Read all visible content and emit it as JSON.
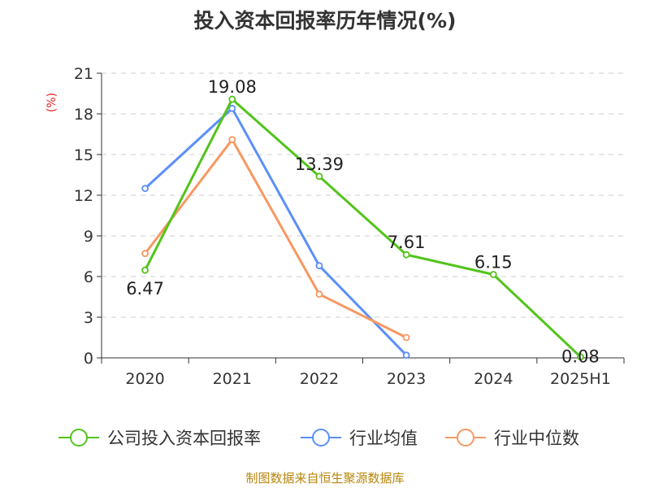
{
  "title": "投入资本回报率历年情况(%)",
  "source": "制图数据来自恒生聚源数据库",
  "chart_data": {
    "type": "line",
    "title": "投入资本回报率历年情况(%)",
    "ylabel": "(%)",
    "ylim": [
      0,
      21
    ],
    "yticks": [
      0,
      3,
      6,
      9,
      12,
      15,
      18,
      21
    ],
    "grid": true,
    "legend_position": "bottom",
    "categories": [
      "2020",
      "2021",
      "2022",
      "2023",
      "2024",
      "2025H1"
    ],
    "series": [
      {
        "name": "公司投入资本回报率",
        "color": "#52c41a",
        "values": [
          6.47,
          19.08,
          13.39,
          7.61,
          6.15,
          0.08
        ],
        "labels": true
      },
      {
        "name": "行业均值",
        "color": "#5b8ff9",
        "values": [
          12.5,
          18.4,
          6.8,
          0.2,
          null,
          null
        ],
        "labels": false
      },
      {
        "name": "行业中位数",
        "color": "#f79862",
        "values": [
          7.7,
          16.1,
          4.7,
          1.5,
          null,
          null
        ],
        "labels": false
      }
    ]
  }
}
